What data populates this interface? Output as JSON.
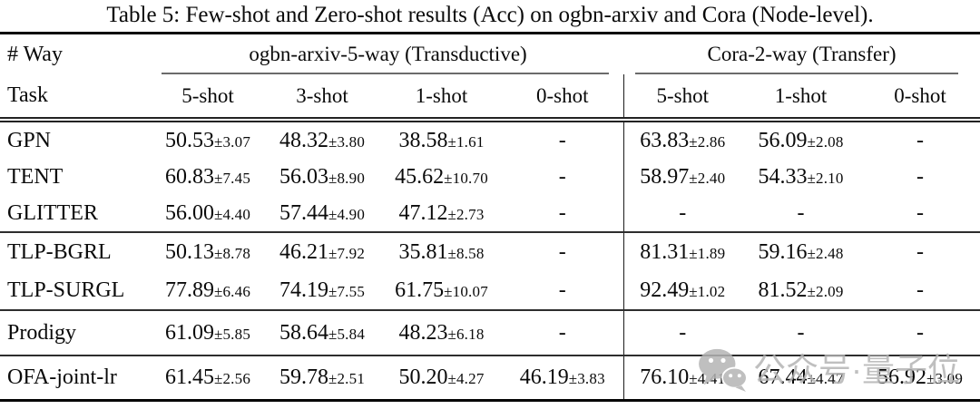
{
  "title": "Table 5: Few-shot and Zero-shot results (Acc) on ogbn-arxiv and Cora (Node-level).",
  "table": {
    "way_label": "# Way",
    "task_label": "Task",
    "groups": [
      {
        "label": "ogbn-arxiv-5-way (Transductive)"
      },
      {
        "label": "Cora-2-way (Transfer)"
      }
    ],
    "shots": [
      "5-shot",
      "3-shot",
      "1-shot",
      "0-shot",
      "5-shot",
      "1-shot",
      "0-shot"
    ],
    "body": [
      {
        "rows": [
          {
            "task": "GPN",
            "cells": [
              {
                "m": "50.53",
                "s": "±3.07"
              },
              {
                "m": "48.32",
                "s": "±3.80"
              },
              {
                "m": "38.58",
                "s": "±1.61"
              },
              {
                "m": "-"
              },
              {
                "m": "63.83",
                "s": "±2.86"
              },
              {
                "m": "56.09",
                "s": "±2.08"
              },
              {
                "m": "-"
              }
            ]
          },
          {
            "task": "TENT",
            "cells": [
              {
                "m": "60.83",
                "s": "±7.45"
              },
              {
                "m": "56.03",
                "s": "±8.90"
              },
              {
                "m": "45.62",
                "s": "±10.70"
              },
              {
                "m": "-"
              },
              {
                "m": "58.97",
                "s": "±2.40"
              },
              {
                "m": "54.33",
                "s": "±2.10"
              },
              {
                "m": "-"
              }
            ]
          },
          {
            "task": "GLITTER",
            "cells": [
              {
                "m": "56.00",
                "s": "±4.40"
              },
              {
                "m": "57.44",
                "s": "±4.90"
              },
              {
                "m": "47.12",
                "s": "±2.73"
              },
              {
                "m": "-"
              },
              {
                "m": "-"
              },
              {
                "m": "-"
              },
              {
                "m": "-"
              }
            ]
          }
        ]
      },
      {
        "rows": [
          {
            "task": "TLP-BGRL",
            "cells": [
              {
                "m": "50.13",
                "s": "±8.78"
              },
              {
                "m": "46.21",
                "s": "±7.92"
              },
              {
                "m": "35.81",
                "s": "±8.58"
              },
              {
                "m": "-"
              },
              {
                "m": "81.31",
                "s": "±1.89"
              },
              {
                "m": "59.16",
                "s": "±2.48"
              },
              {
                "m": "-"
              }
            ]
          },
          {
            "task": "TLP-SURGL",
            "cells": [
              {
                "m": "77.89",
                "s": "±6.46"
              },
              {
                "m": "74.19",
                "s": "±7.55"
              },
              {
                "m": "61.75",
                "s": "±10.07"
              },
              {
                "m": "-"
              },
              {
                "m": "92.49",
                "s": "±1.02"
              },
              {
                "m": "81.52",
                "s": "±2.09"
              },
              {
                "m": "-"
              }
            ]
          }
        ]
      },
      {
        "rows": [
          {
            "task": "Prodigy",
            "cells": [
              {
                "m": "61.09",
                "s": "±5.85"
              },
              {
                "m": "58.64",
                "s": "±5.84"
              },
              {
                "m": "48.23",
                "s": "±6.18"
              },
              {
                "m": "-"
              },
              {
                "m": "-"
              },
              {
                "m": "-"
              },
              {
                "m": "-"
              }
            ]
          }
        ]
      },
      {
        "rows": [
          {
            "task": "OFA-joint-lr",
            "cells": [
              {
                "m": "61.45",
                "s": "±2.56"
              },
              {
                "m": "59.78",
                "s": "±2.51"
              },
              {
                "m": "50.20",
                "s": "±4.27"
              },
              {
                "m": "46.19",
                "s": "±3.83"
              },
              {
                "m": "76.10",
                "s": "±4.41"
              },
              {
                "m": "67.44",
                "s": "±4.47"
              },
              {
                "m": "56.92",
                "s": "±3.09"
              }
            ]
          }
        ]
      }
    ]
  },
  "watermark": {
    "text": "公众号·量子位",
    "icon": "wechat-icon",
    "color": "#b4b4b4"
  }
}
